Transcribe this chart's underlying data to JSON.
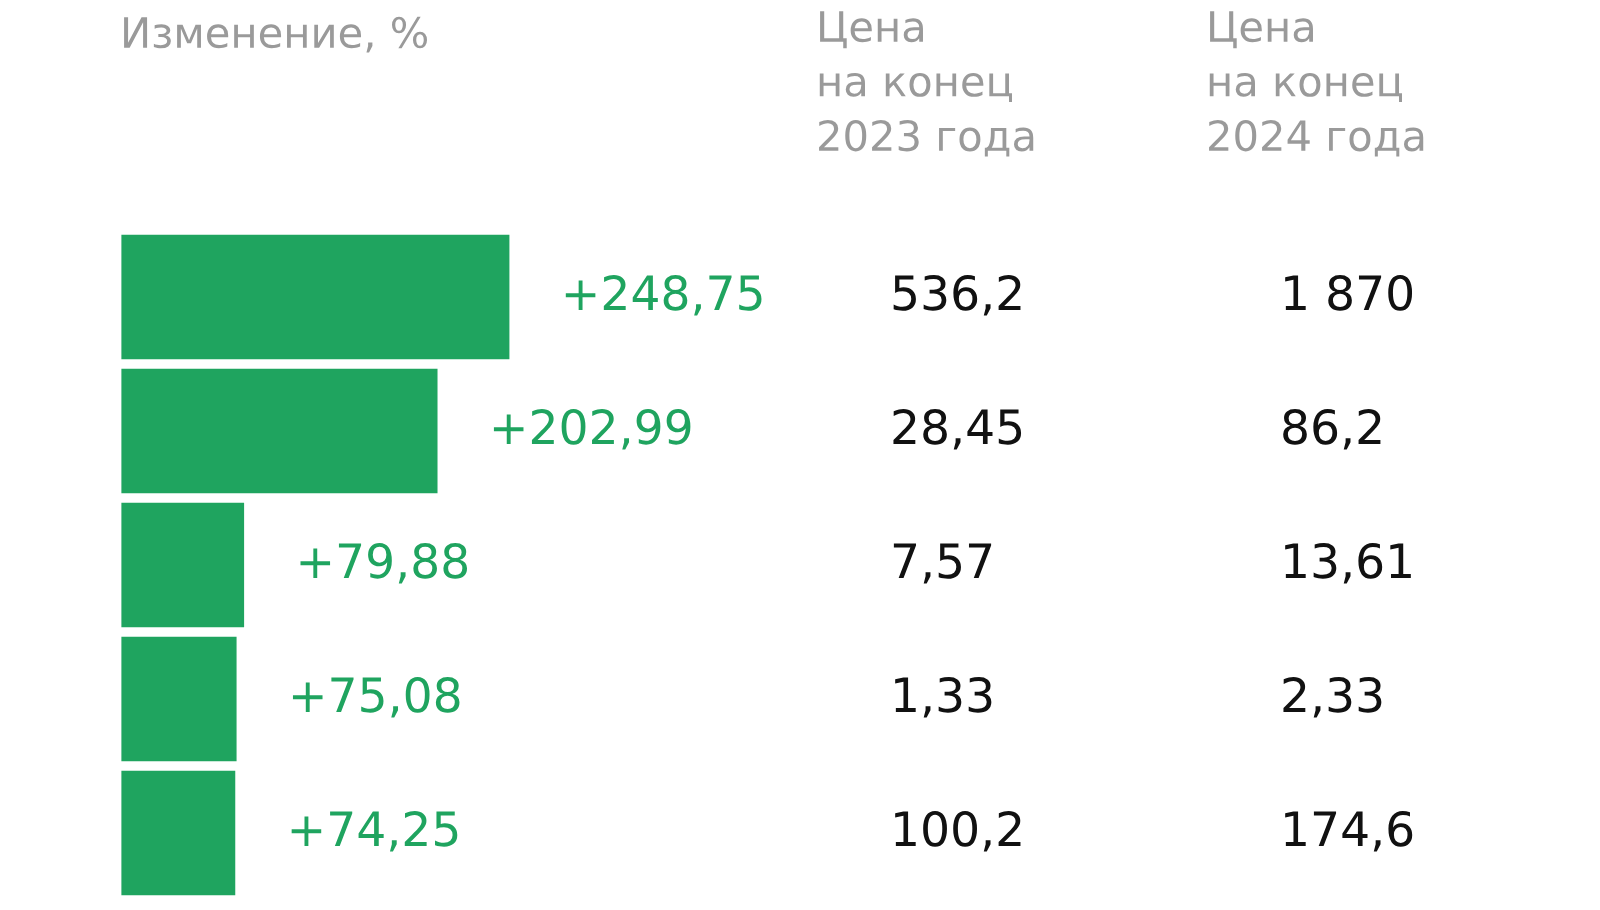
{
  "chart_data": [
    {
      "type": "bar",
      "orientation": "horizontal",
      "title": "Изменение, %",
      "categories": [
        null,
        null,
        null,
        null,
        null
      ],
      "values": [
        248.75,
        202.99,
        79.88,
        75.08,
        74.25
      ],
      "value_labels": [
        "+248,75",
        "+202,99",
        "+79,88",
        "+75,08",
        "+74,25"
      ],
      "color": "#1fa45f",
      "grid": false,
      "legend": false
    },
    {
      "type": "other",
      "title": "Цена\nна конец\n2023 года",
      "annotations": [
        "536,2",
        "28,45",
        "7,57",
        "1,33",
        "100,2"
      ]
    },
    {
      "type": "other",
      "title": "Цена\nна конец\n2024 года",
      "annotations": [
        "1 870",
        "86,2",
        "13,61",
        "2,33",
        "174,6"
      ]
    }
  ]
}
